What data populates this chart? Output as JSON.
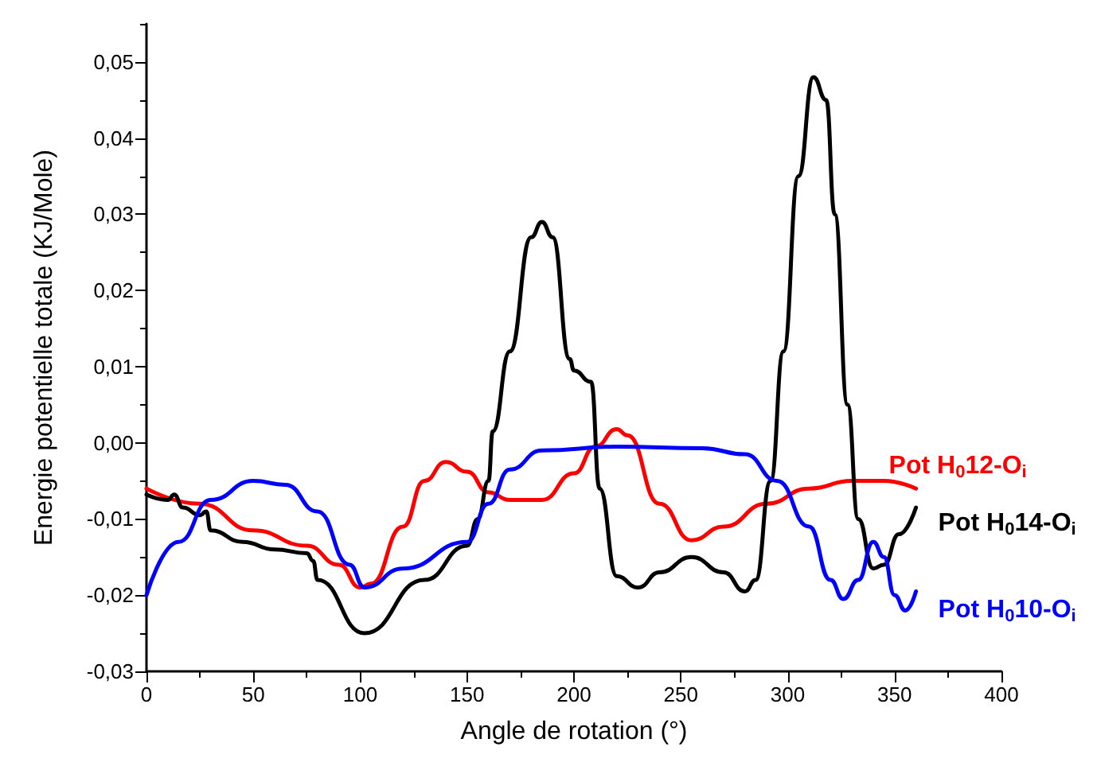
{
  "chart_data": {
    "type": "line",
    "xlabel": "Angle de rotation (°)",
    "ylabel": "Energie potentielle totale (KJ/Mole)",
    "xlim": [
      0,
      400
    ],
    "xticks": [
      0,
      50,
      100,
      150,
      200,
      250,
      300,
      350,
      400
    ],
    "ylim": [
      -0.03,
      0.055
    ],
    "yticks": [
      {
        "value": -0.03,
        "label": "-0,03"
      },
      {
        "value": -0.02,
        "label": "-0,02"
      },
      {
        "value": -0.01,
        "label": "-0,01"
      },
      {
        "value": 0,
        "label": "0,00"
      },
      {
        "value": 0.01,
        "label": "0,01"
      },
      {
        "value": 0.02,
        "label": "0,02"
      },
      {
        "value": 0.03,
        "label": "0,03"
      },
      {
        "value": 0.04,
        "label": "0,04"
      },
      {
        "value": 0.05,
        "label": "0,05"
      }
    ],
    "grid": false,
    "legend": false,
    "marker": "none",
    "line_style": "solid",
    "series": [
      {
        "name": "Pot H$_{0}$12-O$_{i}$",
        "color": "#ff0000",
        "x": [
          0,
          25,
          50,
          75,
          90,
          100,
          105,
          120,
          130,
          140,
          150,
          160,
          170,
          185,
          200,
          210,
          220,
          225,
          240,
          255,
          270,
          290,
          310,
          330,
          345,
          360
        ],
        "values": [
          -0.006,
          -0.008,
          -0.0115,
          -0.0135,
          -0.016,
          -0.019,
          -0.0185,
          -0.011,
          -0.005,
          -0.0025,
          -0.0038,
          -0.0065,
          -0.0075,
          -0.0075,
          -0.004,
          -0.0005,
          0.0018,
          0.001,
          -0.008,
          -0.0128,
          -0.011,
          -0.008,
          -0.006,
          -0.005,
          -0.005,
          -0.006
        ]
      },
      {
        "name": "Pot H$_{0}$14-O$_{i}$",
        "color": "#000000",
        "x": [
          0,
          10,
          13,
          17,
          25,
          28,
          30,
          45,
          60,
          75,
          78,
          80,
          102,
          130,
          150,
          155,
          160,
          162,
          170,
          180,
          185,
          190,
          198,
          200,
          208,
          212,
          220,
          230,
          240,
          255,
          270,
          280,
          285,
          292,
          298,
          305,
          312,
          318,
          322,
          328,
          333,
          340,
          345,
          352,
          360
        ],
        "values": [
          -0.0068,
          -0.0075,
          -0.0068,
          -0.0085,
          -0.0095,
          -0.009,
          -0.0115,
          -0.013,
          -0.014,
          -0.0145,
          -0.0155,
          -0.018,
          -0.025,
          -0.018,
          -0.0135,
          -0.01,
          -0.005,
          0.0015,
          0.012,
          0.027,
          0.029,
          0.027,
          0.011,
          0.0095,
          0.008,
          -0.006,
          -0.0175,
          -0.019,
          -0.017,
          -0.015,
          -0.017,
          -0.0195,
          -0.018,
          -0.005,
          0.012,
          0.035,
          0.048,
          0.045,
          0.03,
          0.005,
          -0.01,
          -0.0165,
          -0.016,
          -0.012,
          -0.0085
        ]
      },
      {
        "name": "Pot H$_{0}$10-O$_{i}$",
        "color": "#0000ff",
        "x": [
          0,
          15,
          30,
          50,
          65,
          80,
          95,
          102,
          120,
          150,
          160,
          170,
          185,
          220,
          260,
          280,
          295,
          310,
          320,
          326,
          333,
          340,
          345,
          350,
          355,
          360
        ],
        "values": [
          -0.02,
          -0.013,
          -0.0075,
          -0.005,
          -0.0055,
          -0.009,
          -0.016,
          -0.019,
          -0.0165,
          -0.013,
          -0.008,
          -0.0035,
          -0.001,
          -0.0005,
          -0.0007,
          -0.0015,
          -0.005,
          -0.011,
          -0.018,
          -0.0205,
          -0.018,
          -0.013,
          -0.015,
          -0.02,
          -0.022,
          -0.0195
        ]
      }
    ]
  }
}
